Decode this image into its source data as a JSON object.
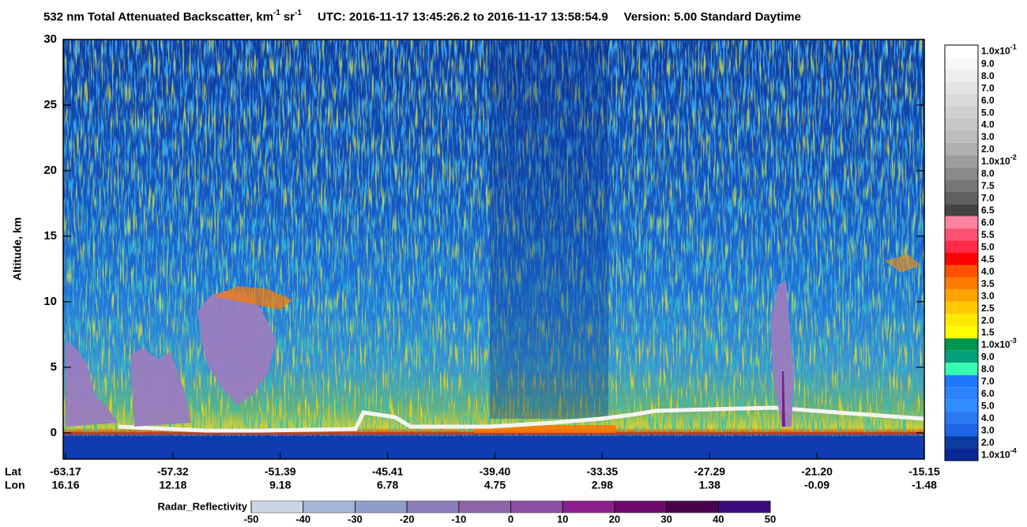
{
  "chart_data": {
    "type": "heatmap",
    "title": {
      "quantity": "532 nm Total Attenuated Backscatter, km",
      "exp1": "-1",
      "unit2": "sr",
      "exp2": "-1",
      "time_range": "UTC:  2016-11-17 13:45:26.2  to  2016-11-17 13:58:54.9",
      "version": "Version: 5.00  Standard  Daytime"
    },
    "ylabel": "Altitude, km",
    "ylim": [
      -2,
      30
    ],
    "yticks": [
      0,
      5,
      10,
      15,
      20,
      25,
      30
    ],
    "x_rows": [
      {
        "name": "Lat",
        "labels": [
          "-63.17",
          "-57.32",
          "-51.39",
          "-45.41",
          "-39.40",
          "-33.35",
          "-27.29",
          "-21.20",
          "-15.15"
        ]
      },
      {
        "name": "Lon",
        "labels": [
          "16.16",
          "12.18",
          "9.18",
          "6.78",
          "4.75",
          "2.98",
          "1.38",
          "-0.09",
          "-1.48"
        ]
      }
    ],
    "colorbar": {
      "labels": [
        {
          "text": "1.0x10",
          "sup": "-1"
        },
        "9.0",
        "8.0",
        "7.0",
        "6.0",
        "5.0",
        "4.0",
        "3.0",
        "2.0",
        {
          "text": "1.0x10",
          "sup": "-2"
        },
        "8.0",
        "7.5",
        "7.0",
        "6.5",
        "6.0",
        "5.5",
        "5.0",
        "4.5",
        "4.0",
        "3.5",
        "3.0",
        "2.5",
        "2.0",
        "1.5",
        {
          "text": "1.0x10",
          "sup": "-3"
        },
        "9.0",
        "8.0",
        "7.0",
        "6.0",
        "5.0",
        "4.0",
        "3.0",
        "2.0",
        {
          "text": "1.0x10",
          "sup": "-4"
        }
      ],
      "colors": [
        "#ffffff",
        "#f8f8f8",
        "#eeeeee",
        "#e4e4e4",
        "#dadada",
        "#d0d0d0",
        "#c6c6c6",
        "#bcbcbc",
        "#b0b0b0",
        "#9e9e9e",
        "#8a8a8a",
        "#767676",
        "#606060",
        "#444444",
        "#ff82a0",
        "#ff5272",
        "#ff2a4a",
        "#ff0000",
        "#ff5200",
        "#ff7a00",
        "#ffa200",
        "#ffc800",
        "#ffe800",
        "#ffff00",
        "#00964b",
        "#00a07a",
        "#36ffb4",
        "#1e78ff",
        "#2a82ff",
        "#2e8cff",
        "#2878f0",
        "#1e64e6",
        "#0a3ca0",
        "#0a2896"
      ]
    },
    "radar_colorbar": {
      "title": "Radar_Reflectivity",
      "lim": [
        -50,
        50
      ],
      "ticks": [
        -50,
        -40,
        -30,
        -20,
        -10,
        0,
        10,
        20,
        30,
        40,
        50
      ],
      "colors": [
        "#c8d6e6",
        "#a2b6d6",
        "#8e9ecb",
        "#8c7cbb",
        "#9064ab",
        "#8c4ea2",
        "#8c1e8e",
        "#6e0a6e",
        "#4b004e",
        "#3c0a7c"
      ]
    }
  }
}
